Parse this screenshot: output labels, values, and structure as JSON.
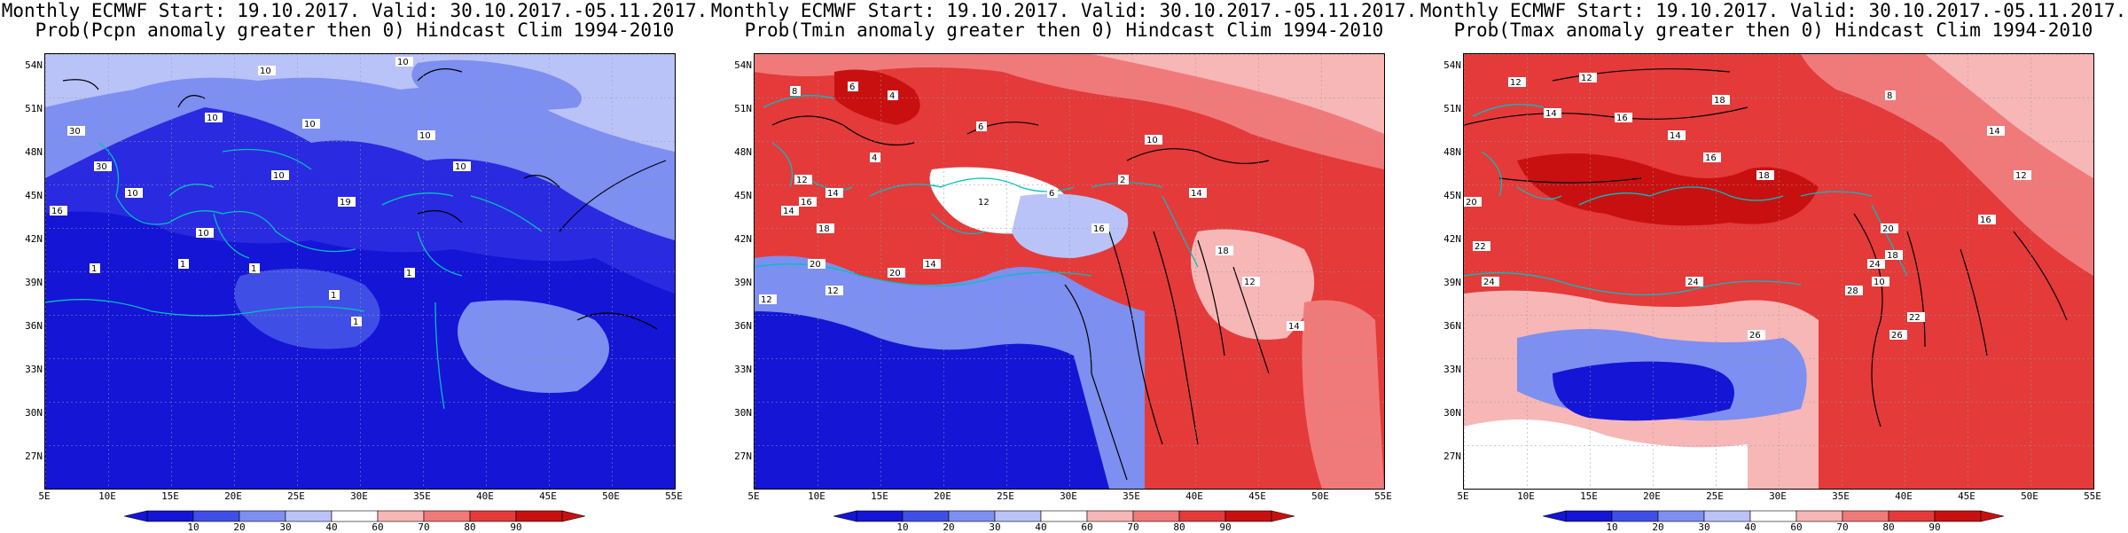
{
  "panels": [
    {
      "id": "pcpn",
      "title_line1": "Monthly ECMWF Start: 19.10.2017. Valid: 30.10.2017.-05.11.2017.",
      "title_line2": "Prob(Pcpn anomaly greater then 0) Hindcast Clim 1994-2010",
      "scheme": "blue",
      "contour_labels": [
        "10",
        "10",
        "10",
        "10",
        "10",
        "10",
        "10",
        "30",
        "30",
        "10",
        "19",
        "16",
        "10",
        "1",
        "1",
        "1",
        "1",
        "1",
        "1"
      ]
    },
    {
      "id": "tmin",
      "title_line1": "Monthly ECMWF Start: 19.10.2017. Valid: 30.10.2017.-05.11.2017.",
      "title_line2": "Prob(Tmin anomaly greater then 0) Hindcast Clim 1994-2010",
      "scheme": "mixed",
      "contour_labels": [
        "8",
        "6",
        "4",
        "4",
        "6",
        "12",
        "14",
        "14",
        "16",
        "18",
        "20",
        "12",
        "10",
        "12",
        "20",
        "12",
        "14",
        "6",
        "2",
        "14",
        "18",
        "16",
        "12",
        "14"
      ]
    },
    {
      "id": "tmax",
      "title_line1": "Monthly ECMWF Start: 19.10.2017. Valid: 30.10.2017.-05.11.2017.",
      "title_line2": "Prob(Tmax anomaly greater then 0) Hindcast Clim 1994-2010",
      "scheme": "red",
      "contour_labels": [
        "12",
        "12",
        "14",
        "16",
        "18",
        "20",
        "14",
        "16",
        "18",
        "22",
        "24",
        "24",
        "26",
        "28",
        "20",
        "24",
        "26",
        "18",
        "16",
        "14",
        "12",
        "8",
        "10",
        "22"
      ]
    }
  ],
  "y_axis_labels": [
    "54N",
    "51N",
    "48N",
    "45N",
    "42N",
    "39N",
    "36N",
    "33N",
    "30N",
    "27N"
  ],
  "x_axis_labels": [
    "5E",
    "10E",
    "15E",
    "20E",
    "25E",
    "30E",
    "35E",
    "40E",
    "45E",
    "50E",
    "55E"
  ],
  "colorbar_labels": [
    "10",
    "20",
    "30",
    "40",
    "60",
    "70",
    "80",
    "90"
  ],
  "colorbar_colors": [
    "#1515d6",
    "#3f4fe6",
    "#7d8ff0",
    "#b9c3f8",
    "#ffffff",
    "#f7b7b7",
    "#f07a7a",
    "#e43a3a",
    "#c91010"
  ],
  "map_colors": {
    "sea": "#00c0c0",
    "contour": "#000000"
  }
}
